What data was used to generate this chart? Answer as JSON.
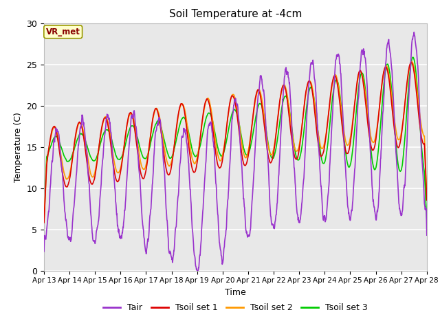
{
  "title": "Soil Temperature at -4cm",
  "xlabel": "Time",
  "ylabel": "Temperature (C)",
  "ylim": [
    0,
    30
  ],
  "background_color": "#e8e8e8",
  "figure_color": "#ffffff",
  "grid_color": "#ffffff",
  "annotation_text": "VR_met",
  "annotation_bg": "#ffffcc",
  "annotation_border": "#999900",
  "annotation_text_color": "#880000",
  "series_colors": [
    "#9933cc",
    "#dd0000",
    "#ff9900",
    "#00cc00"
  ],
  "series_labels": [
    "Tair",
    "Tsoil set 1",
    "Tsoil set 2",
    "Tsoil set 3"
  ],
  "series_linewidths": [
    1.2,
    1.2,
    1.2,
    1.2
  ],
  "xtick_labels": [
    "Apr 13",
    "Apr 14",
    "Apr 15",
    "Apr 16",
    "Apr 17",
    "Apr 18",
    "Apr 19",
    "Apr 20",
    "Apr 21",
    "Apr 22",
    "Apr 23",
    "Apr 24",
    "Apr 25",
    "Apr 26",
    "Apr 27",
    "Apr 28"
  ],
  "n_points": 1440,
  "days": 15
}
